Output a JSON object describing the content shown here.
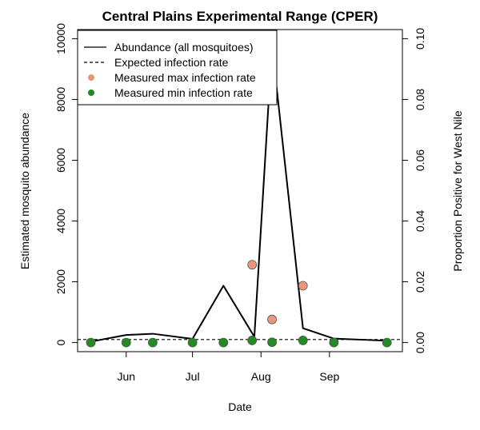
{
  "chart_data": {
    "type": "line",
    "title": "Central Plains Experimental Range (CPER)",
    "xlabel": "Date",
    "ylabel_left": "Estimated mosquito abundance",
    "ylabel_right": "Proportion Positive for West Nile",
    "x_ticks": [
      "Jun",
      "Jul",
      "Aug",
      "Sep"
    ],
    "x_tick_days": [
      152,
      182,
      213,
      244
    ],
    "xlim_days": [
      130,
      277
    ],
    "ylim_left": [
      -300,
      10300
    ],
    "ylim_right": [
      -0.003,
      0.103
    ],
    "y_ticks_left": [
      "0",
      "2000",
      "4000",
      "6000",
      "8000",
      "10000"
    ],
    "y_ticks_right": [
      "0.00",
      "0.02",
      "0.04",
      "0.06",
      "0.08",
      "0.10"
    ],
    "legend_position": "top-left",
    "legend": [
      {
        "label": "Abundance (all mosquitoes)",
        "style": "solid-line"
      },
      {
        "label": "Expected infection rate",
        "style": "dashed-line"
      },
      {
        "label": "Measured max infection rate",
        "style": "salmon-point"
      },
      {
        "label": "Measured min infection rate",
        "style": "green-point"
      }
    ],
    "series": [
      {
        "name": "Abundance (all mosquitoes)",
        "axis": "left",
        "x": [
          136,
          152,
          164,
          182,
          196,
          210,
          218,
          232,
          246,
          270
        ],
        "y": [
          30,
          250,
          290,
          120,
          1870,
          190,
          9770,
          470,
          130,
          60
        ]
      },
      {
        "name": "Expected infection rate",
        "axis": "right",
        "x": [
          130,
          277
        ],
        "y": [
          0.001,
          0.001
        ]
      },
      {
        "name": "Measured max infection rate",
        "axis": "right",
        "x": [
          209,
          218,
          232
        ],
        "y": [
          0.0256,
          0.0076,
          0.0187
        ]
      },
      {
        "name": "Measured min infection rate",
        "axis": "right",
        "x": [
          136,
          152,
          164,
          182,
          196,
          209,
          218,
          232,
          246,
          270
        ],
        "y": [
          0,
          0,
          0,
          0,
          0,
          0.0007,
          0.0001,
          0.0007,
          0,
          0
        ]
      }
    ],
    "colors": {
      "abundance_line": "#000000",
      "expected_line": "#000000",
      "max_point": "#E9967A",
      "min_point": "#228B22",
      "point_border": "#555555"
    }
  }
}
